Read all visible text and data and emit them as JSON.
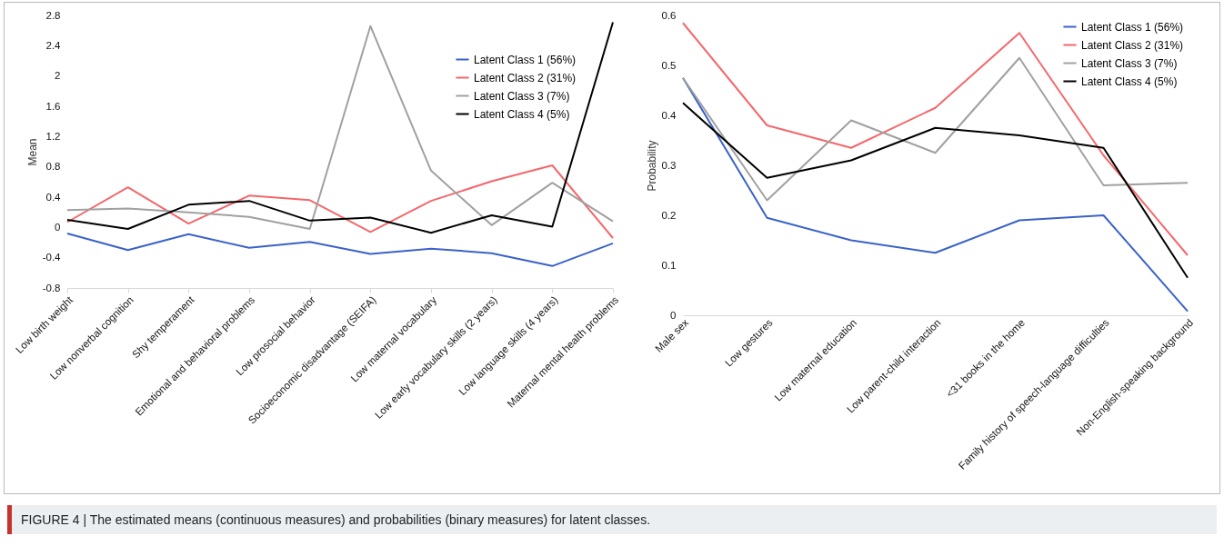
{
  "chart_data": [
    {
      "type": "line",
      "ylabel": "Mean",
      "categories": [
        "Low birth weight",
        "Low nonverbal cognition",
        "Shy temperament",
        "Emotional and behavioral problems",
        "Low prosocial behavior",
        "Socioeconomic disadvantage (SEIFA)",
        "Low maternal vocabulary",
        "Low early vocabulary skills (2 years)",
        "Low language skills (4 years)",
        "Maternal mental health problems"
      ],
      "series": [
        {
          "name": "Latent Class 1 (56%)",
          "color": "#3a62c8",
          "values": [
            -0.08,
            -0.3,
            -0.09,
            -0.27,
            -0.19,
            -0.35,
            -0.28,
            -0.34,
            -0.51,
            -0.21
          ]
        },
        {
          "name": "Latent Class 2 (31%)",
          "color": "#f4676b",
          "values": [
            0.07,
            0.53,
            0.05,
            0.42,
            0.36,
            -0.06,
            0.35,
            0.61,
            0.82,
            -0.14
          ]
        },
        {
          "name": "Latent Class 3 (7%)",
          "color": "#a0a0a0",
          "values": [
            0.23,
            0.25,
            0.2,
            0.14,
            -0.02,
            2.66,
            0.75,
            0.03,
            0.59,
            0.08
          ]
        },
        {
          "name": "Latent Class 4 (5%)",
          "color": "#000000",
          "values": [
            0.1,
            -0.02,
            0.3,
            0.35,
            0.09,
            0.13,
            -0.07,
            0.16,
            0.01,
            2.71
          ]
        }
      ],
      "ylim": [
        -0.8,
        2.8
      ],
      "yticks": [
        -0.8,
        -0.4,
        0,
        0.4,
        0.8,
        1.2,
        1.6,
        2,
        2.4,
        2.8
      ],
      "grid": false,
      "legend": "top right",
      "annotations": [
        "FIGURE 4 | The estimated means (continuous measures) and probabilities (binary measures) for latent classes."
      ]
    },
    {
      "type": "line",
      "ylabel": "Probability",
      "categories": [
        "Male sex",
        "Low gestures",
        "Low maternal education",
        "Low parent-child interaction",
        "<31 books in the home",
        "Family history of speech-language difficulties",
        "Non-English-speaking background"
      ],
      "series": [
        {
          "name": "Latent Class 1 (56%)",
          "color": "#3a62c8",
          "values": [
            0.475,
            0.195,
            0.15,
            0.125,
            0.19,
            0.2,
            0.008
          ]
        },
        {
          "name": "Latent Class 2 (31%)",
          "color": "#f4676b",
          "values": [
            0.585,
            0.38,
            0.335,
            0.415,
            0.565,
            0.32,
            0.12
          ]
        },
        {
          "name": "Latent Class 3 (7%)",
          "color": "#a0a0a0",
          "values": [
            0.475,
            0.23,
            0.39,
            0.325,
            0.515,
            0.26,
            0.265
          ]
        },
        {
          "name": "Latent Class 4 (5%)",
          "color": "#000000",
          "values": [
            0.425,
            0.275,
            0.31,
            0.375,
            0.36,
            0.335,
            0.075
          ]
        }
      ],
      "ylim": [
        0,
        0.6
      ],
      "yticks": [
        0,
        0.1,
        0.2,
        0.3,
        0.4,
        0.5,
        0.6
      ],
      "grid": false,
      "legend": "top right"
    }
  ]
}
